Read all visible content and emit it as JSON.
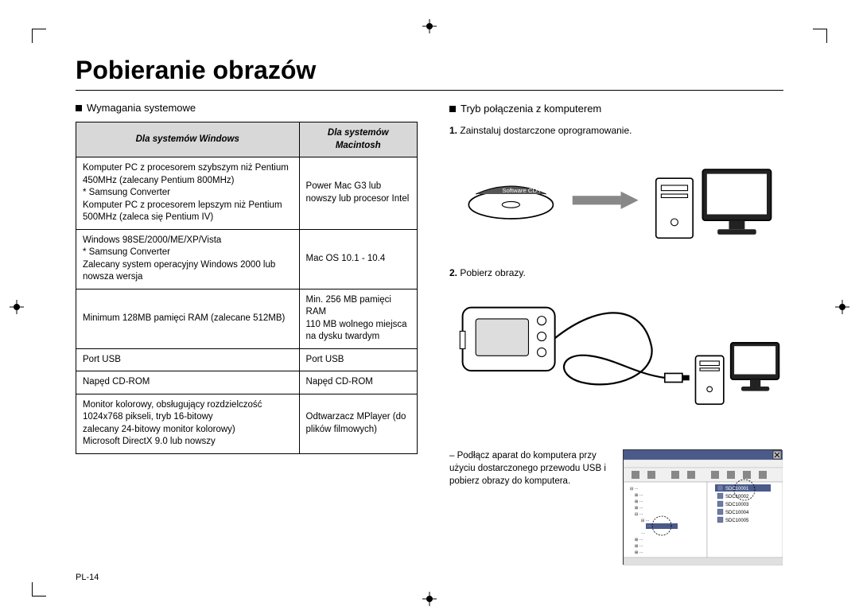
{
  "title": "Pobieranie obrazów",
  "left": {
    "heading": "Wymagania systemowe",
    "table": {
      "headers": [
        "Dla systemów Windows",
        "Dla systemów Macintosh"
      ],
      "rows": [
        [
          "Komputer PC z procesorem szybszym niż Pentium 450MHz (zalecany Pentium 800MHz)\n* Samsung Converter\n  Komputer PC z procesorem lepszym niż Pentium 500MHz (zaleca się Pentium IV)",
          "Power Mac G3 lub nowszy lub procesor Intel"
        ],
        [
          "Windows 98SE/2000/ME/XP/Vista\n* Samsung Converter\n  Zalecany system operacyjny Windows 2000 lub nowsza wersja",
          "Mac OS 10.1 - 10.4"
        ],
        [
          "Minimum 128MB pamięci RAM (zalecane 512MB)",
          "Min. 256 MB pamięci RAM\n110 MB wolnego miejsca na dysku twardym"
        ],
        [
          "Port USB",
          "Port USB"
        ],
        [
          "Napęd CD-ROM",
          "Napęd CD-ROM"
        ],
        [
          "Monitor kolorowy, obsługujący rozdzielczość 1024x768 pikseli, tryb 16-bitowy\nzalecany 24-bitowy monitor kolorowy)\nMicrosoft DirectX 9.0 lub nowszy",
          "Odtwarzacz MPlayer (do plików filmowych)"
        ]
      ]
    }
  },
  "right": {
    "heading": "Tryb połączenia z komputerem",
    "step1": {
      "num": "1.",
      "text": "Zainstaluj dostarczone oprogramowanie."
    },
    "step2": {
      "num": "2.",
      "text": "Pobierz obrazy."
    },
    "connect_text": "– Podłącz aparat do komputera przy użyciu dostarczonego przewodu USB i pobierz obrazy do komputera.",
    "screenshot": {
      "files": [
        "SDC10001",
        "SDC10002",
        "SDC10003",
        "SDC10004",
        "SDC10005"
      ],
      "circled": "SDC10001"
    }
  },
  "page_number": "PL-14",
  "colors": {
    "text": "#000000",
    "bg": "#ffffff",
    "header_bg": "#d8d8d8",
    "screenshot_bg": "#e8e8e8"
  }
}
